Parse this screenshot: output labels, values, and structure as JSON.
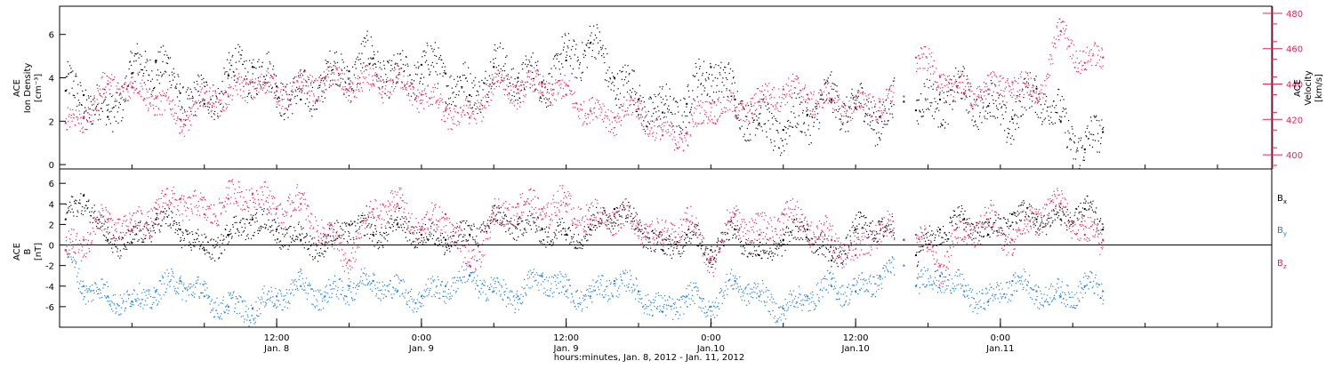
{
  "colors": {
    "black": "#000000",
    "pink": "#e8245c",
    "blue": "#1f7fd6"
  },
  "x_axis": {
    "title": "hours:minutes, Jan.  8, 2012 - Jan. 11, 2012",
    "range_hours": [
      -6.0,
      94.5
    ],
    "ticks": [
      {
        "hour": 12,
        "time": "12:00",
        "date": "Jan. 8"
      },
      {
        "hour": 24,
        "time": "0:00",
        "date": "Jan. 9"
      },
      {
        "hour": 36,
        "time": "12:00",
        "date": "Jan. 9"
      },
      {
        "hour": 48,
        "time": "0:00",
        "date": "Jan.10"
      },
      {
        "hour": 60,
        "time": "12:00",
        "date": "Jan.10"
      },
      {
        "hour": 72,
        "time": "0:00",
        "date": "Jan.11"
      }
    ]
  },
  "panel_top": {
    "ylabel_left": [
      "ACE",
      "Ion Density",
      "[cm⁻³]"
    ],
    "ylabel_right": [
      "ACE",
      "Velocity",
      "[km/s]"
    ],
    "left_ylim": [
      -0.2,
      7.3
    ],
    "left_ticks": [
      "0",
      "2",
      "4",
      "6"
    ],
    "right_ylim": [
      392,
      484
    ],
    "right_ticks": [
      "400",
      "420",
      "440",
      "460",
      "480"
    ]
  },
  "panel_bottom": {
    "ylabel": [
      "ACE",
      "B",
      "[nT]"
    ],
    "ylim": [
      -8.0,
      7.4
    ],
    "ticks": [
      "-6",
      "-4",
      "-2",
      "0",
      "2",
      "4",
      "6"
    ],
    "legend": [
      {
        "label": "B",
        "sub": "x",
        "color": "#000000"
      },
      {
        "label": "B",
        "sub": "y",
        "color": "#1f7fd6"
      },
      {
        "label": "B",
        "sub": "z",
        "color": "#e8245c"
      }
    ]
  },
  "chart_data": [
    {
      "type": "scatter",
      "title": "",
      "xlabel": "hours:minutes, Jan.  8, 2012 - Jan. 11, 2012",
      "ylabel": "ACE Ion Density [cm⁻³]",
      "ylabel_right": "ACE Velocity [km/s]",
      "x_unit": "hours since 2012-01-08 00:00",
      "series": [
        {
          "axis": "left",
          "color": "#000000",
          "x": [
            -5.5,
            -4,
            -2,
            0,
            2,
            4,
            6,
            8,
            10,
            12,
            14,
            16,
            18,
            20,
            22,
            24,
            26,
            28,
            30,
            32,
            34,
            36,
            38,
            40,
            42,
            44,
            46,
            48,
            50,
            52,
            54,
            56,
            58,
            60,
            62,
            64,
            65,
            67,
            69,
            71,
            73,
            75,
            77,
            79,
            80.5
          ],
          "y": [
            3.4,
            3.2,
            2.2,
            4.2,
            4.8,
            3.3,
            2.8,
            4.1,
            4.5,
            3.6,
            3.0,
            4.0,
            4.3,
            4.9,
            3.8,
            4.6,
            4.2,
            3.2,
            4.5,
            4.0,
            3.8,
            4.8,
            5.6,
            4.0,
            3.0,
            2.4,
            2.8,
            4.5,
            3.0,
            1.9,
            1.6,
            2.3,
            3.0,
            2.6,
            2.2,
            2.9,
            2.5,
            3.0,
            3.3,
            2.7,
            2.1,
            3.5,
            2.0,
            0.7,
            1.5
          ]
        },
        {
          "axis": "right",
          "color": "#e8245c",
          "x": [
            -5.5,
            -4,
            -2,
            0,
            2,
            4,
            6,
            8,
            10,
            12,
            14,
            16,
            18,
            20,
            22,
            24,
            26,
            28,
            30,
            32,
            34,
            36,
            38,
            40,
            42,
            44,
            46,
            48,
            50,
            52,
            54,
            56,
            58,
            60,
            62,
            64,
            65,
            67,
            69,
            71,
            73,
            75,
            77,
            79,
            80.5
          ],
          "y": [
            418,
            421,
            440,
            438,
            432,
            420,
            431,
            433,
            441,
            436,
            437,
            443,
            440,
            440,
            441,
            434,
            425,
            421,
            440,
            437,
            440,
            434,
            425,
            421,
            426,
            411,
            412,
            429,
            425,
            430,
            437,
            434,
            430,
            427,
            430,
            433,
            455,
            444,
            435,
            437,
            441,
            432,
            470,
            452,
            455
          ]
        }
      ]
    },
    {
      "type": "scatter",
      "title": "",
      "xlabel": "hours:minutes, Jan.  8, 2012 - Jan. 11, 2012",
      "ylabel": "ACE B [nT]",
      "x_unit": "hours since 2012-01-08 00:00",
      "series": [
        {
          "name": "Bx",
          "color": "#000000",
          "x": [
            -5.5,
            -4,
            -2,
            0,
            2,
            4,
            6,
            8,
            10,
            12,
            14,
            16,
            18,
            20,
            22,
            24,
            26,
            28,
            30,
            32,
            34,
            36,
            38,
            40,
            42,
            44,
            46,
            48,
            50,
            52,
            54,
            56,
            58,
            60,
            62,
            64,
            65,
            67,
            69,
            71,
            73,
            75,
            77,
            79,
            80.5
          ],
          "y": [
            2.5,
            4.8,
            0.5,
            0.2,
            2.5,
            1.5,
            -0.5,
            1.0,
            2.5,
            1.5,
            0.5,
            0,
            2.0,
            1.0,
            2.0,
            1.0,
            0.5,
            1.0,
            2.5,
            2.0,
            1.5,
            1.0,
            1.5,
            3.5,
            2.0,
            -0.5,
            1.0,
            -0.5,
            1.5,
            -1.0,
            0.5,
            1.5,
            -1.5,
            1.5,
            2.0,
            0.5,
            -1.0,
            1.5,
            2.5,
            1.0,
            3.0,
            2.5,
            2.5,
            3.5,
            1.5
          ]
        },
        {
          "name": "By",
          "color": "#1f7fd6",
          "x": [
            -5.5,
            -4,
            -2,
            0,
            2,
            4,
            6,
            8,
            10,
            12,
            14,
            16,
            18,
            20,
            22,
            24,
            26,
            28,
            30,
            32,
            34,
            36,
            38,
            40,
            42,
            44,
            46,
            48,
            50,
            52,
            54,
            56,
            58,
            60,
            62,
            64,
            65,
            67,
            69,
            71,
            73,
            75,
            77,
            79,
            80.5
          ],
          "y": [
            -0.5,
            -4.0,
            -5.0,
            -5.5,
            -4.5,
            -3.5,
            -5.0,
            -6.0,
            -6.2,
            -5.0,
            -4.0,
            -5.0,
            -4.0,
            -3.5,
            -4.5,
            -5.0,
            -4.0,
            -3.0,
            -4.5,
            -5.0,
            -3.0,
            -4.5,
            -5.0,
            -3.5,
            -4.5,
            -6.5,
            -5.0,
            -6.0,
            -3.5,
            -5.0,
            -6.2,
            -5.0,
            -4.0,
            -4.5,
            -3.0,
            -2.0,
            -4.0,
            -3.0,
            -4.5,
            -5.5,
            -3.5,
            -4.5,
            -5.0,
            -4.0,
            -4.5
          ]
        },
        {
          "name": "Bz",
          "color": "#e8245c",
          "x": [
            -5.5,
            -4,
            -2,
            0,
            2,
            4,
            6,
            8,
            10,
            12,
            14,
            16,
            18,
            20,
            22,
            24,
            26,
            28,
            30,
            32,
            34,
            36,
            38,
            40,
            42,
            44,
            46,
            48,
            50,
            52,
            54,
            56,
            58,
            60,
            62,
            64,
            65,
            67,
            69,
            71,
            73,
            75,
            77,
            79,
            80.5
          ],
          "y": [
            -0.5,
            0.5,
            2.5,
            1.5,
            3.5,
            4.5,
            3.0,
            4.5,
            5.0,
            3.5,
            4.0,
            1.0,
            -1.5,
            3.5,
            4.0,
            1.5,
            3.0,
            -2.0,
            2.5,
            4.0,
            3.5,
            4.0,
            2.5,
            3.0,
            2.0,
            0.5,
            2.5,
            -1.5,
            3.0,
            1.0,
            3.0,
            2.0,
            0.5,
            -1.0,
            2.0,
            0.5,
            1.0,
            -2.0,
            1.5,
            2.5,
            0.5,
            3.0,
            4.0,
            1.0,
            0.5
          ]
        }
      ]
    }
  ]
}
